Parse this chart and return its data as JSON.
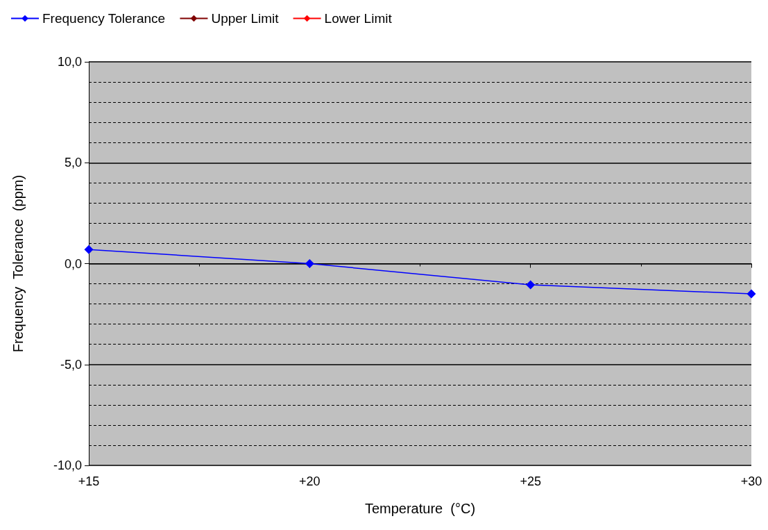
{
  "chart_data": {
    "type": "line",
    "xlabel": "Temperature  (°C)",
    "ylabel": "Frequency  Tolerance  (ppm)",
    "x": [
      15,
      20,
      25,
      30
    ],
    "series": [
      {
        "name": "Frequency Tolerance",
        "color": "#0000ff",
        "values": [
          0.7,
          0.0,
          -1.05,
          -1.5
        ]
      },
      {
        "name": "Upper Limit",
        "color": "#800000",
        "values": [
          null,
          null,
          null,
          null
        ]
      },
      {
        "name": "Lower Limit",
        "color": "#ff0000",
        "values": [
          null,
          null,
          null,
          null
        ]
      }
    ],
    "xlim": [
      15,
      30
    ],
    "xticks": [
      {
        "value": 15,
        "label": "+15"
      },
      {
        "value": 17.5,
        "label": null
      },
      {
        "value": 20,
        "label": "+20"
      },
      {
        "value": 22.5,
        "label": null
      },
      {
        "value": 25,
        "label": "+25"
      },
      {
        "value": 27.5,
        "label": null
      },
      {
        "value": 30,
        "label": "+30"
      }
    ],
    "ylim": [
      -10,
      10
    ],
    "yticks": [
      {
        "value": -10,
        "label": "-10,0"
      },
      {
        "value": -9,
        "label": null
      },
      {
        "value": -8,
        "label": null
      },
      {
        "value": -7,
        "label": null
      },
      {
        "value": -6,
        "label": null
      },
      {
        "value": -5,
        "label": "-5,0"
      },
      {
        "value": -4,
        "label": null
      },
      {
        "value": -3,
        "label": null
      },
      {
        "value": -2,
        "label": null
      },
      {
        "value": -1,
        "label": null
      },
      {
        "value": 0,
        "label": "0,0"
      },
      {
        "value": 1,
        "label": null
      },
      {
        "value": 2,
        "label": null
      },
      {
        "value": 3,
        "label": null
      },
      {
        "value": 4,
        "label": null
      },
      {
        "value": 5,
        "label": "5,0"
      },
      {
        "value": 6,
        "label": null
      },
      {
        "value": 7,
        "label": null
      },
      {
        "value": 8,
        "label": null
      },
      {
        "value": 9,
        "label": null
      },
      {
        "value": 10,
        "label": "10,0"
      }
    ],
    "grid": "y",
    "legend": "top left",
    "marker": "diamond",
    "line_style": "solid"
  }
}
